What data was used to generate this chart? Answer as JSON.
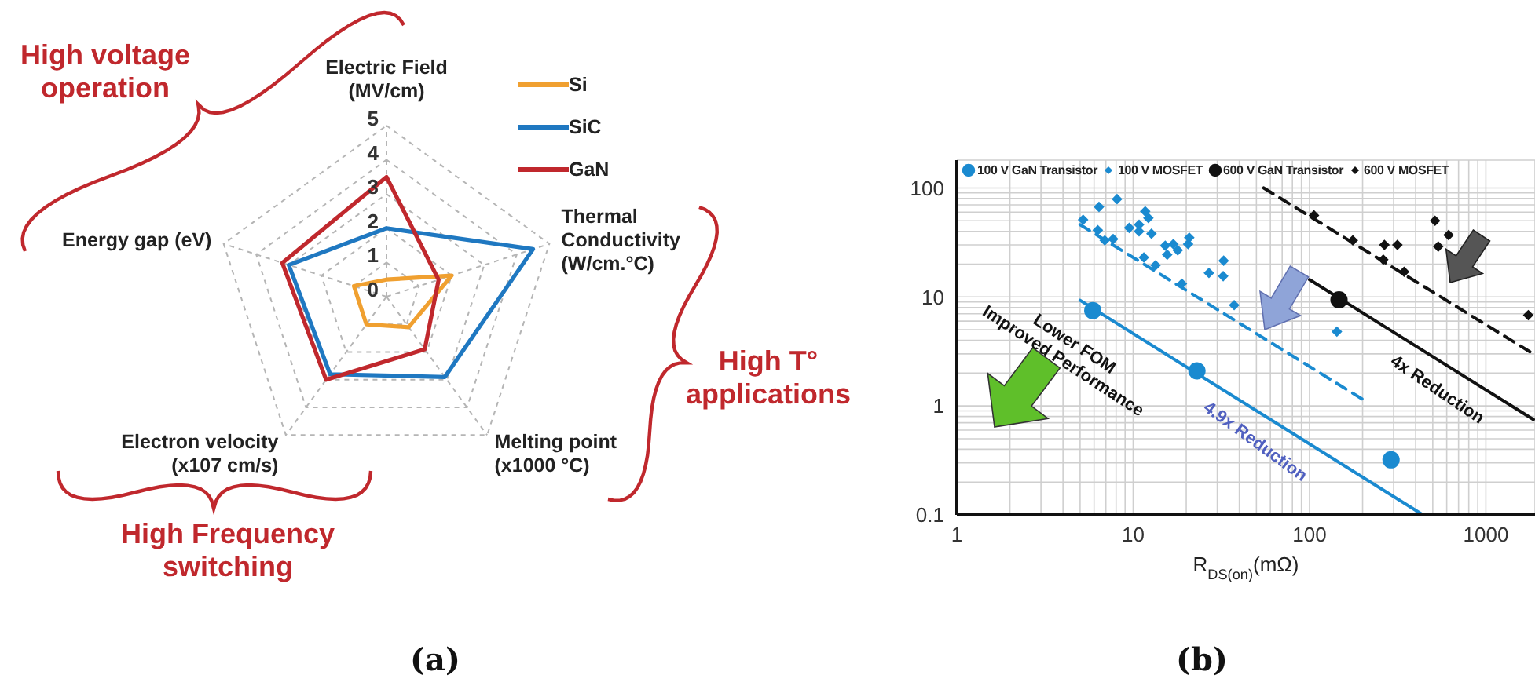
{
  "chart_data": [
    {
      "type": "radar",
      "categories": [
        "Electric Field\n(MV/cm)",
        "Thermal\nConductivity\n(W/cm.°C)",
        "Melting point\n(x1000 °C)",
        "Electron velocity\n(x107 cm/s)",
        "Energy gap (eV)"
      ],
      "series": [
        {
          "name": "Si",
          "color": "#f0a030",
          "values": [
            0.5,
            2.0,
            1.1,
            1.0,
            1.0
          ]
        },
        {
          "name": "SiC",
          "color": "#1f78c1",
          "values": [
            2.0,
            4.5,
            2.9,
            2.8,
            3.0
          ]
        },
        {
          "name": "GaN",
          "color": "#c0282d",
          "values": [
            3.5,
            1.6,
            1.9,
            3.0,
            3.2
          ]
        }
      ],
      "ylim": [
        0,
        5
      ],
      "yticks": [
        0,
        1,
        2,
        3,
        4,
        5
      ],
      "grid": true,
      "legend": "top right",
      "annotations": [
        "High voltage\noperation",
        "High T°\napplications",
        "High Frequency\nswitching",
        "(a)"
      ]
    },
    {
      "type": "scatter",
      "xlabel": "R$_{DS(on)}$(mΩ)",
      "log": "xy",
      "xlim": [
        1,
        1900
      ],
      "ylim": [
        0.1,
        180
      ],
      "xticks": [
        1,
        {
          "value": 2,
          "label": null
        },
        {
          "value": 3,
          "label": null
        },
        {
          "value": 4,
          "label": null
        },
        {
          "value": 5,
          "label": null
        },
        {
          "value": 6,
          "label": null
        },
        {
          "value": 7,
          "label": null
        },
        {
          "value": 8,
          "label": null
        },
        {
          "value": 9,
          "label": null
        },
        10,
        {
          "value": 20,
          "label": null
        },
        {
          "value": 30,
          "label": null
        },
        {
          "value": 40,
          "label": null
        },
        {
          "value": 50,
          "label": null
        },
        {
          "value": 60,
          "label": null
        },
        {
          "value": 70,
          "label": null
        },
        {
          "value": 80,
          "label": null
        },
        {
          "value": 90,
          "label": null
        },
        100,
        {
          "value": 200,
          "label": null
        },
        {
          "value": 300,
          "label": null
        },
        {
          "value": 400,
          "label": null
        },
        {
          "value": 500,
          "label": null
        },
        {
          "value": 600,
          "label": null
        },
        {
          "value": 700,
          "label": null
        },
        {
          "value": 800,
          "label": null
        },
        {
          "value": 900,
          "label": null
        },
        1000
      ],
      "yticks": [
        0.1,
        {
          "value": 0.2,
          "label": null
        },
        {
          "value": 0.3,
          "label": null
        },
        {
          "value": 0.4,
          "label": null
        },
        {
          "value": 0.5,
          "label": null
        },
        {
          "value": 0.6,
          "label": null
        },
        {
          "value": 0.7,
          "label": null
        },
        {
          "value": 0.8,
          "label": null
        },
        {
          "value": 0.9,
          "label": null
        },
        1,
        {
          "value": 2,
          "label": null
        },
        {
          "value": 3,
          "label": null
        },
        {
          "value": 4,
          "label": null
        },
        {
          "value": 5,
          "label": null
        },
        {
          "value": 6,
          "label": null
        },
        {
          "value": 7,
          "label": null
        },
        {
          "value": 8,
          "label": null
        },
        {
          "value": 9,
          "label": null
        },
        10,
        {
          "value": 20,
          "label": null
        },
        {
          "value": 30,
          "label": null
        },
        {
          "value": 40,
          "label": null
        },
        {
          "value": 50,
          "label": null
        },
        {
          "value": 60,
          "label": null
        },
        {
          "value": 70,
          "label": null
        },
        {
          "value": 80,
          "label": null
        },
        {
          "value": 90,
          "label": null
        },
        100
      ],
      "grid": true,
      "legend": "top",
      "series": [
        {
          "name": "100 V GaN Transistor",
          "color": "#1a8ad0",
          "marker": "circle",
          "x": [
            5.9,
            23,
            290
          ],
          "values": [
            7.5,
            2.1,
            0.32
          ]
        },
        {
          "name": "100 V MOSFET",
          "color": "#1a8ad0",
          "marker": "diamond",
          "x": [
            5.2,
            6.4,
            6.3,
            6.9,
            7.7,
            8.1,
            9.5,
            10.8,
            10.8,
            11.7,
            12.2,
            12.7,
            11.5,
            13.4,
            15.2,
            15.6,
            16.9,
            17.9,
            20.5,
            20.8,
            18.9,
            26.9,
            32.6,
            32.4,
            37.4,
            143
          ],
          "values": [
            51,
            67,
            41,
            33,
            34,
            79,
            43,
            46,
            40,
            61,
            53,
            38,
            23,
            19.5,
            29.5,
            24.4,
            30.5,
            26.8,
            30.5,
            35,
            13.2,
            16.6,
            21.5,
            15.5,
            8.4,
            4.8
          ]
        },
        {
          "name": "600 V GaN Transistor",
          "color": "#111111",
          "marker": "circle",
          "x": [
            147
          ],
          "values": [
            9.4
          ]
        },
        {
          "name": "600 V MOSFET",
          "color": "#111111",
          "marker": "diamond",
          "x": [
            106,
            176,
            262,
            266,
            315,
            344,
            515,
            537,
            615,
            1740
          ],
          "values": [
            56,
            33,
            22,
            30,
            30,
            17,
            50,
            29,
            37,
            6.8
          ]
        },
        {
          "type": "line",
          "color": "#1a8ad0",
          "line_style": "dashed",
          "x": [
            5,
            200
          ],
          "values": [
            46,
            1.15
          ]
        },
        {
          "type": "line",
          "color": "#1a8ad0",
          "line_style": "solid",
          "x": [
            5,
            440
          ],
          "values": [
            9.3,
            0.1
          ]
        },
        {
          "type": "line",
          "color": "#111111",
          "line_style": "solid",
          "x": [
            100,
            1860
          ],
          "values": [
            14.4,
            0.75
          ]
        },
        {
          "type": "line",
          "color": "#111111",
          "line_style": "dashed",
          "x": [
            55,
            1860
          ],
          "values": [
            100,
            3.0
          ]
        }
      ],
      "annotations": [
        "Lower FOM\nImproved Performance",
        "4.9x Reduction",
        "4x Reduction",
        "(b)"
      ]
    }
  ]
}
